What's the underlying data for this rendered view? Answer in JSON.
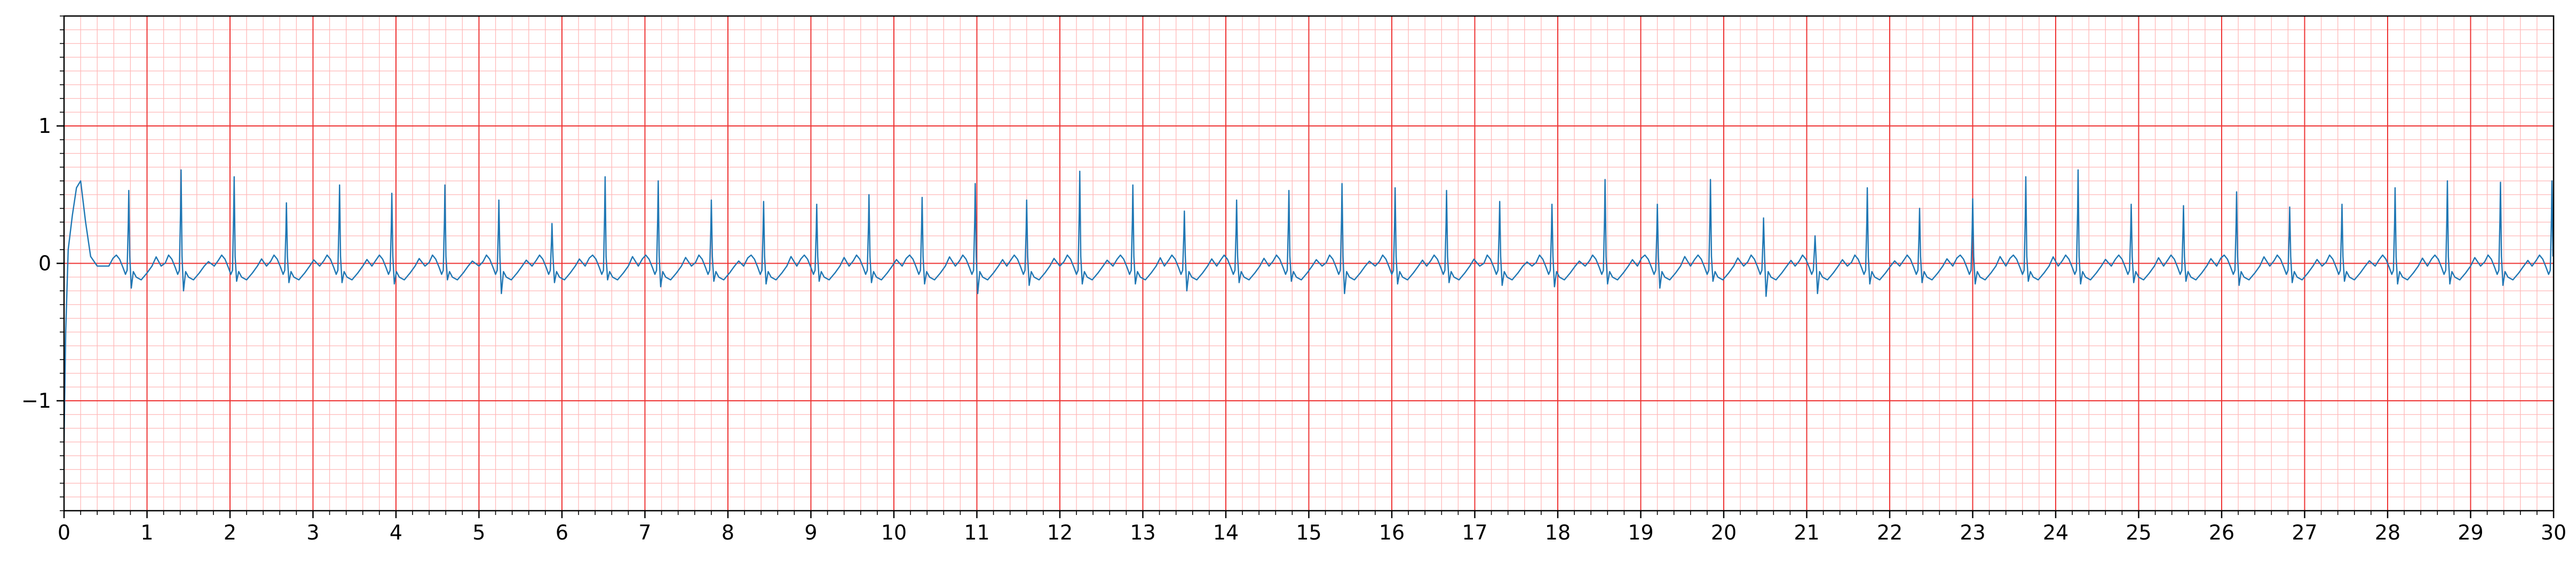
{
  "chart_data": {
    "type": "line",
    "title": "",
    "xlabel": "",
    "ylabel": "",
    "xlim": [
      0,
      30
    ],
    "ylim": [
      -1.8,
      1.8
    ],
    "x_ticks": [
      0,
      1,
      2,
      3,
      4,
      5,
      6,
      7,
      8,
      9,
      10,
      11,
      12,
      13,
      14,
      15,
      16,
      17,
      18,
      19,
      20,
      21,
      22,
      23,
      24,
      25,
      26,
      27,
      28,
      29,
      30
    ],
    "x_tick_labels": [
      "0",
      "1",
      "2",
      "3",
      "4",
      "5",
      "6",
      "7",
      "8",
      "9",
      "10",
      "11",
      "12",
      "13",
      "14",
      "15",
      "16",
      "17",
      "18",
      "19",
      "20",
      "21",
      "22",
      "23",
      "24",
      "25",
      "26",
      "27",
      "28",
      "29",
      "30"
    ],
    "y_ticks": [
      -1,
      0,
      1
    ],
    "y_tick_labels": [
      "−1",
      "0",
      "1"
    ],
    "grid": true,
    "grid_major_x_step": 1,
    "grid_major_y_values": [
      -1,
      0,
      1
    ],
    "grid_minor_x_step": 0.2,
    "grid_minor_y_step": 0.1,
    "grid_major_color": "#ee3333",
    "grid_minor_color": "#ffb8b8",
    "line_color": "#1f77b4",
    "legend": "none",
    "series": [
      {
        "onset": {
          "x": [
            0.0,
            0.02,
            0.05,
            0.1,
            0.15,
            0.2,
            0.26,
            0.32,
            0.4,
            0.5
          ],
          "y": [
            -1.3,
            -0.5,
            0.1,
            0.35,
            0.55,
            0.6,
            0.3,
            0.05,
            -0.02,
            -0.02
          ]
        },
        "r_peak_times": [
          0.78,
          1.41,
          2.05,
          2.68,
          3.32,
          3.95,
          4.59,
          5.24,
          5.88,
          6.52,
          7.16,
          7.8,
          8.43,
          9.07,
          9.7,
          10.34,
          10.98,
          11.6,
          12.24,
          12.88,
          13.5,
          14.13,
          14.76,
          15.4,
          16.04,
          16.66,
          17.3,
          17.93,
          18.57,
          19.2,
          19.84,
          20.48,
          21.1,
          21.73,
          22.36,
          23.0,
          23.64,
          24.27,
          24.91,
          25.54,
          26.18,
          26.82,
          27.45,
          28.09,
          28.72,
          29.36,
          29.98
        ],
        "r_peak_values": [
          0.53,
          0.68,
          0.63,
          0.44,
          0.57,
          0.51,
          0.57,
          0.46,
          0.29,
          0.63,
          0.6,
          0.46,
          0.45,
          0.43,
          0.5,
          0.48,
          0.58,
          0.46,
          0.67,
          0.57,
          0.38,
          0.46,
          0.53,
          0.58,
          0.55,
          0.53,
          0.45,
          0.43,
          0.61,
          0.43,
          0.61,
          0.33,
          0.2,
          0.55,
          0.4,
          0.47,
          0.63,
          0.68,
          0.43,
          0.42,
          0.52,
          0.41,
          0.43,
          0.55,
          0.6,
          0.59,
          0.6
        ],
        "s_trough_values": [
          -0.18,
          -0.2,
          -0.13,
          -0.14,
          -0.14,
          -0.15,
          -0.12,
          -0.22,
          -0.14,
          -0.12,
          -0.17,
          -0.13,
          -0.15,
          -0.13,
          -0.14,
          -0.15,
          -0.22,
          -0.16,
          -0.15,
          -0.15,
          -0.2,
          -0.14,
          -0.13,
          -0.22,
          -0.15,
          -0.14,
          -0.16,
          -0.17,
          -0.15,
          -0.18,
          -0.13,
          -0.24,
          -0.22,
          -0.15,
          -0.14,
          -0.15,
          -0.13,
          -0.15,
          -0.14,
          -0.13,
          -0.16,
          -0.14,
          -0.13,
          -0.15,
          -0.15,
          -0.16,
          -0.17
        ]
      }
    ]
  }
}
